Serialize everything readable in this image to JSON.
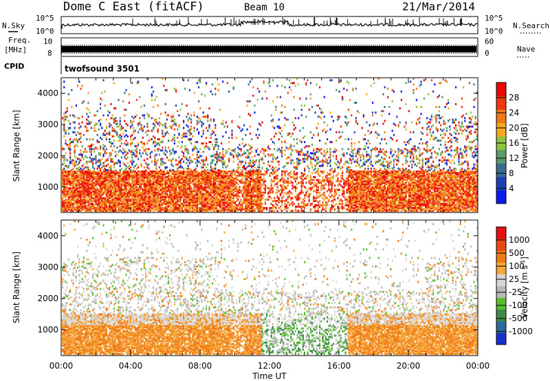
{
  "header": {
    "title": "Dome C East (fitACF)",
    "beam": "Beam 10",
    "date": "21/Mar/2014"
  },
  "top_panels": {
    "nsky_label": "N.Sky",
    "nsky_ticks": [
      "10^5",
      "10^0"
    ],
    "nsearch_label": "N.Search",
    "nsearch_ticks": [
      "10^5",
      "10^0"
    ],
    "freq_label_1": "Freq.",
    "freq_label_2": "[MHz]",
    "freq_ticks": [
      "10",
      "8"
    ],
    "nave_label": "Nave",
    "nave_ticks": [
      "60",
      "0"
    ],
    "cpid_label": "CPID",
    "cpid_value": "twofsound 3501"
  },
  "chart_data": [
    {
      "type": "heatmap",
      "name": "power",
      "ylabel": "Slant Range [km]",
      "yticks": [
        "4000",
        "3000",
        "2000",
        "1000"
      ],
      "ylim": [
        180,
        4500
      ],
      "xlim": [
        0,
        24
      ],
      "colorbar_label": "Power [dB]",
      "colorbar_ticks": [
        "28",
        "24",
        "20",
        "16",
        "12",
        "8",
        "4"
      ],
      "colorbar_range": [
        0,
        30
      ],
      "colors": [
        "#0a1cf0",
        "#1f3fb5",
        "#3a6e8f",
        "#5b9a6a",
        "#8cc63f",
        "#f5a623",
        "#f07a18",
        "#ee3a10",
        "#e80808"
      ]
    },
    {
      "type": "heatmap",
      "name": "velocity",
      "ylabel": "Slant Range [km]",
      "yticks": [
        "4000",
        "3000",
        "2000",
        "1000"
      ],
      "ylim": [
        180,
        4500
      ],
      "xlim": [
        0,
        24
      ],
      "colorbar_label": "Velocity [m s^-1]",
      "colorbar_ticks": [
        "1000",
        "500",
        "100",
        "25",
        "-25",
        "-100",
        "-500",
        "-1000"
      ],
      "colors": [
        "#1a2fd0",
        "#2f6a9e",
        "#3d8c4a",
        "#59c02c",
        "#b8b8b4",
        "#d7d6d2",
        "#f4a83c",
        "#f07a14",
        "#e84a10",
        "#e61010"
      ]
    }
  ],
  "xaxis": {
    "ticks": [
      "00:00",
      "04:00",
      "08:00",
      "12:00",
      "16:00",
      "20:00",
      "00:00"
    ],
    "label": "Time UT"
  }
}
